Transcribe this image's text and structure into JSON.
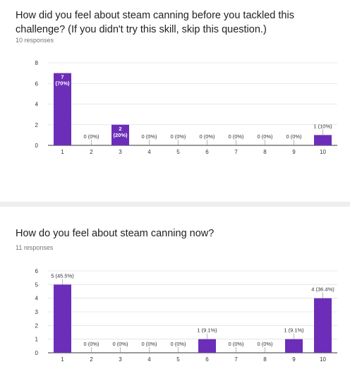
{
  "questions": [
    {
      "title": "How did you feel about steam canning before you tackled this challenge? (If you didn't try this skill, skip this question.)",
      "responses": "10 responses"
    },
    {
      "title": "How do you feel about steam canning now?",
      "responses": "11 responses"
    }
  ],
  "colors": {
    "bar": "#6c2eb9",
    "grid": "#e0e0e0",
    "axis": "#333333"
  },
  "chart_data": [
    {
      "type": "bar",
      "title": "",
      "xlabel": "",
      "ylabel": "",
      "categories": [
        "1",
        "2",
        "3",
        "4",
        "5",
        "6",
        "7",
        "8",
        "9",
        "10"
      ],
      "values": [
        7,
        0,
        2,
        0,
        0,
        0,
        0,
        0,
        0,
        1
      ],
      "data_labels": [
        "7 (70%)",
        "0 (0%)",
        "2 (20%)",
        "0 (0%)",
        "0 (0%)",
        "0 (0%)",
        "0 (0%)",
        "0 (0%)",
        "0 (0%)",
        "1 (10%)"
      ],
      "yticks": [
        0,
        2,
        4,
        6,
        8
      ],
      "ylim": [
        0,
        8
      ],
      "grid": true,
      "legend": "none"
    },
    {
      "type": "bar",
      "title": "",
      "xlabel": "",
      "ylabel": "",
      "categories": [
        "1",
        "2",
        "3",
        "4",
        "5",
        "6",
        "7",
        "8",
        "9",
        "10"
      ],
      "values": [
        5,
        0,
        0,
        0,
        0,
        1,
        0,
        0,
        1,
        4
      ],
      "data_labels": [
        "5 (45.5%)",
        "0 (0%)",
        "0 (0%)",
        "0 (0%)",
        "0 (0%)",
        "1 (9.1%)",
        "0 (0%)",
        "0 (0%)",
        "1 (9.1%)",
        "4 (36.4%)"
      ],
      "yticks": [
        0,
        1,
        2,
        3,
        4,
        5,
        6
      ],
      "ylim": [
        0,
        6
      ],
      "grid": true,
      "legend": "none"
    }
  ]
}
